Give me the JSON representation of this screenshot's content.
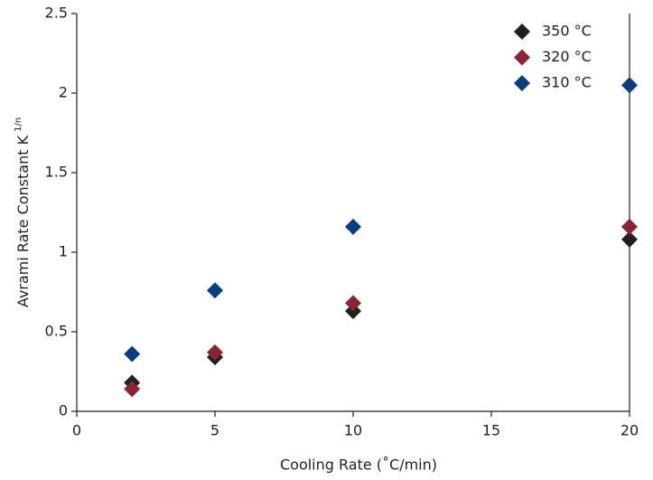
{
  "chart_data": {
    "type": "scatter",
    "xlabel": "Cooling Rate (˚C/min)",
    "ylabel": "Avrami Rate Constant K",
    "ylabel_superscript": "1/n",
    "x": [
      2,
      5,
      10,
      20
    ],
    "series": [
      {
        "name": "350 °C",
        "color": "#231f20",
        "values": [
          0.18,
          0.34,
          0.63,
          1.08
        ]
      },
      {
        "name": "320 °C",
        "color": "#8b2332",
        "values": [
          0.14,
          0.37,
          0.68,
          1.16
        ]
      },
      {
        "name": "310 °C",
        "color": "#0a3d7e",
        "values": [
          0.36,
          0.76,
          1.16,
          2.05
        ]
      }
    ],
    "xlim": [
      0,
      20
    ],
    "xticks": [
      0,
      5,
      10,
      15,
      20
    ],
    "ylim": [
      0,
      2.5
    ],
    "yticks": [
      0,
      0.5,
      1,
      1.5,
      2,
      2.5
    ],
    "legend": "top-right",
    "grid": false
  }
}
